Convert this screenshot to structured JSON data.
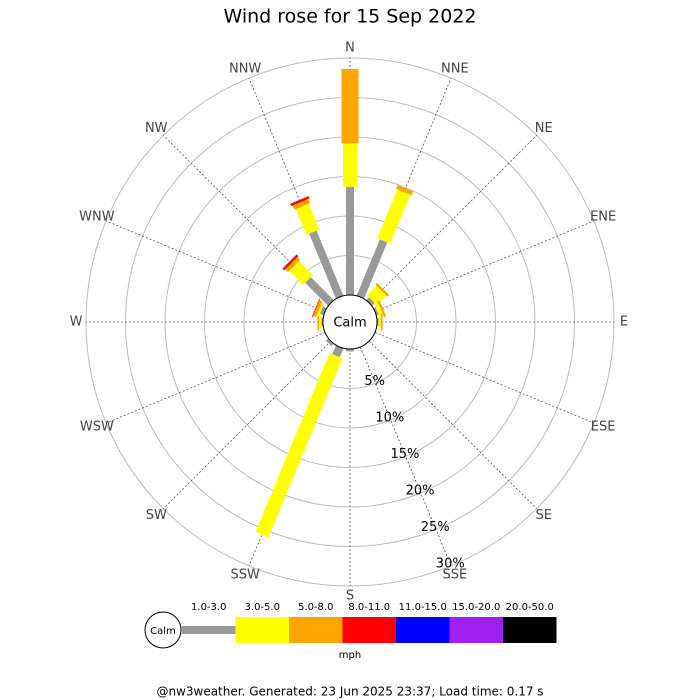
{
  "chart_data": {
    "type": "windrose",
    "title": "Wind rose for 15 Sep 2022",
    "directions": [
      "N",
      "NNE",
      "NE",
      "ENE",
      "E",
      "ESE",
      "SE",
      "SSE",
      "S",
      "SSW",
      "SW",
      "WSW",
      "W",
      "WNW",
      "NW",
      "NNW"
    ],
    "series": [
      {
        "name": "1.0-3.0",
        "color": "#999999",
        "values": [
          13.7,
          7.7,
          0.5,
          0.3,
          0.2,
          0,
          0,
          0,
          0.3,
          1.2,
          0.4,
          0,
          0.2,
          0.5,
          4.1,
          8.9
        ]
      },
      {
        "name": "3.0-5.0",
        "color": "#ffff00",
        "values": [
          5.5,
          6.7,
          1.7,
          0.5,
          0.3,
          0,
          0,
          0,
          0,
          24.5,
          0,
          0,
          0.3,
          0.3,
          2.5,
          3.5
        ]
      },
      {
        "name": "5.0-8.0",
        "color": "#ffa500",
        "values": [
          9.4,
          0.5,
          0.3,
          0.3,
          0.2,
          0,
          0,
          0,
          0,
          0,
          0,
          0,
          0.2,
          0.4,
          0.5,
          0.6
        ]
      },
      {
        "name": "8.0-11.0",
        "color": "#ff0000",
        "values": [
          0,
          0,
          0,
          0,
          0,
          0,
          0,
          0,
          0,
          0,
          0,
          0,
          0,
          0.1,
          0.3,
          0.3
        ]
      },
      {
        "name": "11.0-15.0",
        "color": "#0000ff",
        "values": [
          0,
          0,
          0,
          0,
          0,
          0,
          0,
          0,
          0,
          0,
          0,
          0,
          0,
          0,
          0,
          0
        ]
      },
      {
        "name": "15.0-20.0",
        "color": "#a020f0",
        "values": [
          0,
          0,
          0,
          0,
          0,
          0,
          0,
          0,
          0,
          0,
          0,
          0,
          0,
          0,
          0,
          0
        ]
      },
      {
        "name": "20.0-50.0",
        "color": "#000000",
        "values": [
          0,
          0,
          0,
          0,
          0,
          0,
          0,
          0,
          0,
          0,
          0,
          0,
          0,
          0,
          0,
          0
        ]
      }
    ],
    "rlim": [
      0,
      30
    ],
    "rticks": [
      {
        "value": 5,
        "label": "5%"
      },
      {
        "value": 10,
        "label": "10%"
      },
      {
        "value": 15,
        "label": "15%"
      },
      {
        "value": 20,
        "label": "20%"
      },
      {
        "value": 25,
        "label": "25%"
      },
      {
        "value": 30,
        "label": "30%"
      }
    ],
    "center_label": "Calm",
    "unit_label": "mph",
    "footer": "@nw3weather. Generated: 23 Jun 2025 23:37; Load time: 0.17 s"
  }
}
